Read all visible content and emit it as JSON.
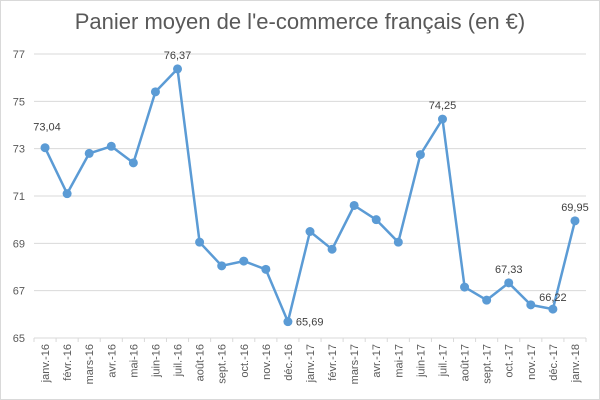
{
  "chart_data": {
    "type": "line",
    "title": "Panier moyen de l'e-commerce français (en €)",
    "xlabel": "",
    "ylabel": "",
    "ylim": [
      65,
      77
    ],
    "yticks": [
      65,
      67,
      69,
      71,
      73,
      75,
      77
    ],
    "grid": true,
    "legend": "none",
    "colors": {
      "series": "#5B9BD5",
      "grid": "#d9d9d9",
      "text": "#595959"
    },
    "categories": [
      "janv.-16",
      "févr.-16",
      "mars-16",
      "avr.-16",
      "mai-16",
      "juin-16",
      "juil.-16",
      "août-16",
      "sept.-16",
      "oct.-16",
      "nov.-16",
      "déc.-16",
      "janv.-17",
      "févr.-17",
      "mars-17",
      "avr.-17",
      "mai-17",
      "juin-17",
      "juil.-17",
      "août-17",
      "sept.-17",
      "oct.-17",
      "nov.-17",
      "déc.-17",
      "janv.-18"
    ],
    "values": [
      73.04,
      71.1,
      72.8,
      73.1,
      72.4,
      75.4,
      76.37,
      69.05,
      68.05,
      68.25,
      67.9,
      65.69,
      69.5,
      68.75,
      70.6,
      70.0,
      69.05,
      72.75,
      74.25,
      67.15,
      66.6,
      67.33,
      66.4,
      66.22,
      69.95
    ],
    "data_labels": [
      {
        "index": 0,
        "text": "73,04"
      },
      {
        "index": 6,
        "text": "76,37"
      },
      {
        "index": 11,
        "text": "65,69"
      },
      {
        "index": 18,
        "text": "74,25"
      },
      {
        "index": 21,
        "text": "67,33"
      },
      {
        "index": 23,
        "text": "66,22"
      },
      {
        "index": 24,
        "text": "69,95"
      }
    ]
  }
}
